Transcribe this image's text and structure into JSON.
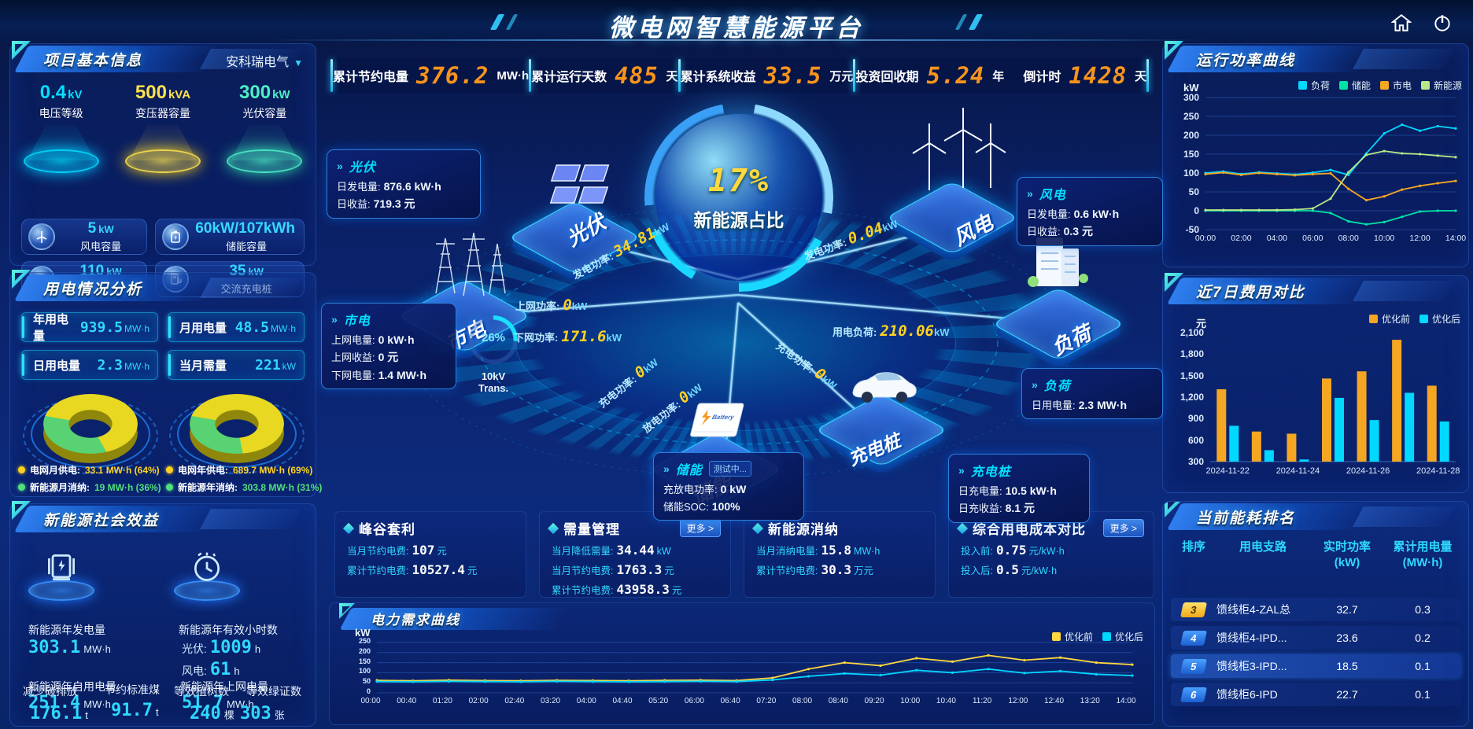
{
  "header": {
    "title": "微电网智慧能源平台",
    "stats": [
      {
        "label": "累计节约电量",
        "value": "376.2",
        "unit": "MW·h"
      },
      {
        "label": "累计运行天数",
        "value": "485",
        "unit": "天"
      },
      {
        "label": "累计系统收益",
        "value": "33.5",
        "unit": "万元"
      },
      {
        "label": "投资回收期",
        "value": "5.24",
        "unit": "年"
      },
      {
        "label": "倒计时",
        "value": "1428",
        "unit": "天"
      }
    ]
  },
  "project": {
    "title": "项目基本信息",
    "company": "安科瑞电气",
    "podiums": [
      {
        "value": "0.4",
        "unit": "kV",
        "label": "电压等级"
      },
      {
        "value": "500",
        "unit": "kVA",
        "label": "变压器容量"
      },
      {
        "value": "300",
        "unit": "kW",
        "label": "光伏容量"
      }
    ],
    "cards": [
      {
        "value": "5",
        "unit": "kW",
        "label": "风电容量"
      },
      {
        "value": "60kW/107kWh",
        "unit": "",
        "label": "储能容量"
      },
      {
        "value": "110",
        "unit": "kW",
        "label": "直流充电桩"
      },
      {
        "value": "35",
        "unit": "kW",
        "label": "交流充电桩"
      }
    ]
  },
  "usage": {
    "title": "用电情况分析",
    "stats": [
      {
        "label": "年用电量",
        "value": "939.5",
        "unit": "MW·h"
      },
      {
        "label": "月用电量",
        "value": "48.5",
        "unit": "MW·h"
      },
      {
        "label": "日用电量",
        "value": "2.3",
        "unit": "MW·h"
      },
      {
        "label": "当月需量",
        "value": "221",
        "unit": "kW"
      }
    ],
    "month_donut": {
      "grid_pct": 64,
      "renewable_pct": 36,
      "legend": [
        {
          "label": "电网月供电:",
          "value": "33.1 MW·h (64%)"
        },
        {
          "label": "新能源月消纳:",
          "value": "19 MW·h (36%)"
        }
      ]
    },
    "year_donut": {
      "grid_pct": 69,
      "renewable_pct": 31,
      "legend": [
        {
          "label": "电网年供电:",
          "value": "689.7 MW·h (69%)"
        },
        {
          "label": "新能源年消纳:",
          "value": "303.8 MW·h (31%)"
        }
      ]
    }
  },
  "social": {
    "title": "新能源社会效益",
    "gen": {
      "label": "新能源年发电量",
      "value": "303.1",
      "unit": "MW·h"
    },
    "hours": {
      "label": "新能源年有效小时数",
      "pv_label": "光伏:",
      "pv_value": "1009",
      "pv_unit": "h",
      "wind_label": "风电:",
      "wind_value": "61",
      "wind_unit": "h"
    },
    "extras": [
      {
        "label": "新能源年自用电量",
        "value": "251.4",
        "unit": "MW·h"
      },
      {
        "label": "减少碳排放",
        "value": "176.1",
        "unit": "t"
      },
      {
        "label": "节约标准煤",
        "value": "91.7",
        "unit": "t"
      },
      {
        "label": "新能源年上网电量",
        "value": "51.7",
        "unit": "MW·h"
      },
      {
        "label": "等效植树数",
        "value": "240",
        "unit": "棵"
      },
      {
        "label": "等效绿证数",
        "value": "303",
        "unit": "张"
      }
    ]
  },
  "center": {
    "ratio_value": "17%",
    "ratio_label": "新能源占比",
    "transformer_pct": "26%",
    "transformer_label": "10kV Trans.",
    "islands": {
      "pv": "光伏",
      "grid": "市电",
      "storage": "储能",
      "wind": "风电",
      "load": "负荷",
      "ev": "充电桩"
    },
    "cards": {
      "pv": {
        "title": "光伏",
        "rows": [
          {
            "label": "日发电量:",
            "value": "876.6 kW·h"
          },
          {
            "label": "日收益:",
            "value": "719.3 元"
          }
        ]
      },
      "wind": {
        "title": "风电",
        "rows": [
          {
            "label": "日发电量:",
            "value": "0.6 kW·h"
          },
          {
            "label": "日收益:",
            "value": "0.3 元"
          }
        ]
      },
      "grid": {
        "title": "市电",
        "rows": [
          {
            "label": "上网电量:",
            "value": "0 kW·h"
          },
          {
            "label": "上网收益:",
            "value": "0 元"
          },
          {
            "label": "下网电量:",
            "value": "1.4 MW·h"
          }
        ]
      },
      "load": {
        "title": "负荷",
        "rows": [
          {
            "label": "日用电量:",
            "value": "2.3 MW·h"
          }
        ]
      },
      "storage": {
        "title": "储能",
        "badge": "测试中...",
        "rows": [
          {
            "label": "充放电功率:",
            "value": "0 kW"
          },
          {
            "label": "储能SOC:",
            "value": "100%"
          }
        ]
      },
      "ev": {
        "title": "充电桩",
        "rows": [
          {
            "label": "日充电量:",
            "value": "10.5 kW·h"
          },
          {
            "label": "日充收益:",
            "value": "8.1 元"
          }
        ]
      }
    },
    "flows": {
      "pv_gen": {
        "label": "发电功率:",
        "value": "34.81",
        "unit": "kW"
      },
      "feed_in": {
        "label": "上网功率:",
        "value": "0",
        "unit": "kW"
      },
      "feed_down": {
        "label": "下网功率:",
        "value": "171.6",
        "unit": "kW"
      },
      "storage_charge": {
        "label": "充电功率:",
        "value": "0",
        "unit": "kW"
      },
      "storage_discharge": {
        "label": "放电功率:",
        "value": "0",
        "unit": "kW"
      },
      "wind_gen": {
        "label": "发电功率:",
        "value": "0.04",
        "unit": "kW"
      },
      "load_power": {
        "label": "用电负荷:",
        "value": "210.06",
        "unit": "kW"
      },
      "ev_charge": {
        "label": "充电功率:",
        "value": "0",
        "unit": "kW"
      }
    }
  },
  "bottom_panels": [
    {
      "title": "峰谷套利",
      "rows": [
        {
          "label": "当月节约电费:",
          "value": "107",
          "unit": "元"
        },
        {
          "label": "累计节约电费:",
          "value": "10527.4",
          "unit": "元"
        }
      ]
    },
    {
      "title": "需量管理",
      "more": "更多 >",
      "rows": [
        {
          "label": "当月降低需量:",
          "value": "34.44",
          "unit": "kW"
        },
        {
          "label": "当月节约电费:",
          "value": "1763.3",
          "unit": "元"
        },
        {
          "label": "累计节约电费:",
          "value": "43958.3",
          "unit": "元"
        }
      ]
    },
    {
      "title": "新能源消纳",
      "rows": [
        {
          "label": "当月消纳电量:",
          "value": "15.8",
          "unit": "MW·h"
        },
        {
          "label": "累计节约电费:",
          "value": "30.3",
          "unit": "万元"
        }
      ]
    },
    {
      "title": "综合用电成本对比",
      "more": "更多 >",
      "rows": [
        {
          "label": "投入前:",
          "value": "0.75",
          "unit": "元/kW·h"
        },
        {
          "label": "投入后:",
          "value": "0.5",
          "unit": "元/kW·h"
        }
      ]
    }
  ],
  "charts": {
    "power_curve": {
      "type": "line",
      "title": "运行功率曲线",
      "unit": "kW",
      "ylim": [
        -50,
        300
      ],
      "yticks": [
        300,
        250,
        200,
        150,
        100,
        50,
        0,
        -50
      ],
      "xticks": [
        "00:00",
        "02:00",
        "04:00",
        "06:00",
        "08:00",
        "10:00",
        "12:00",
        "14:00"
      ],
      "series": [
        {
          "name": "负荷",
          "color": "#00d8ff",
          "values": [
            100,
            104,
            97,
            102,
            99,
            96,
            101,
            108,
            95,
            152,
            205,
            228,
            212,
            224,
            218
          ]
        },
        {
          "name": "储能",
          "color": "#00e3a4",
          "values": [
            0,
            0,
            0,
            0,
            0,
            0,
            0,
            -6,
            -28,
            -36,
            -30,
            -16,
            -2,
            0,
            0
          ]
        },
        {
          "name": "市电",
          "color": "#f5a623",
          "values": [
            97,
            101,
            95,
            100,
            97,
            94,
            97,
            99,
            58,
            28,
            38,
            56,
            66,
            73,
            79
          ]
        },
        {
          "name": "新能源",
          "color": "#b8e986",
          "values": [
            2,
            2,
            2,
            2,
            2,
            3,
            6,
            32,
            102,
            148,
            158,
            152,
            150,
            146,
            142
          ]
        }
      ]
    },
    "cost7d": {
      "type": "bar",
      "title": "近7日费用对比",
      "unit": "元",
      "ylim": [
        300,
        2100
      ],
      "yticks": [
        "2,100",
        "1,800",
        "1,500",
        "1,200",
        "900",
        "600",
        "300"
      ],
      "categories": [
        "2024-11-22",
        "2024-11-23",
        "2024-11-24",
        "2024-11-25",
        "2024-11-26",
        "2024-11-27",
        "2024-11-28"
      ],
      "xticks": [
        "2024-11-22",
        "2024-11-24",
        "2024-11-26",
        "2024-11-28"
      ],
      "series": [
        {
          "name": "优化前",
          "color": "#f5a623",
          "values": [
            1310,
            720,
            690,
            1460,
            1560,
            2000,
            1360
          ]
        },
        {
          "name": "优化后",
          "color": "#00d8ff",
          "values": [
            800,
            460,
            330,
            1190,
            880,
            1260,
            860
          ]
        }
      ]
    },
    "demand_curve": {
      "type": "line",
      "title": "电力需求曲线",
      "unit": "kW",
      "ylim": [
        0,
        250
      ],
      "yticks": [
        250,
        200,
        150,
        100,
        50,
        0
      ],
      "xticks": [
        "00:00",
        "00:40",
        "01:20",
        "02:00",
        "02:40",
        "03:20",
        "04:00",
        "04:40",
        "05:20",
        "06:00",
        "06:40",
        "07:20",
        "08:00",
        "08:40",
        "09:20",
        "10:00",
        "10:40",
        "11:20",
        "12:00",
        "12:40",
        "13:20",
        "14:00"
      ],
      "series": [
        {
          "name": "优化前",
          "color": "#ffd83d",
          "values": [
            62,
            60,
            63,
            61,
            60,
            62,
            61,
            60,
            62,
            63,
            61,
            74,
            118,
            150,
            135,
            172,
            155,
            186,
            162,
            175,
            150,
            140
          ]
        },
        {
          "name": "优化后",
          "color": "#00d8ff",
          "values": [
            56,
            55,
            57,
            56,
            55,
            57,
            56,
            55,
            56,
            57,
            56,
            64,
            82,
            96,
            88,
            112,
            100,
            118,
            98,
            108,
            92,
            86
          ]
        }
      ]
    }
  },
  "ranking": {
    "title": "当前能耗排名",
    "columns": [
      {
        "line1": "排序",
        "line2": ""
      },
      {
        "line1": "用电支路",
        "line2": ""
      },
      {
        "line1": "实时功率",
        "line2": "(kW)"
      },
      {
        "line1": "累计用电量",
        "line2": "(MW·h)"
      }
    ],
    "rows": [
      {
        "rank": "3",
        "branch": "馈线柜4-ZAL总",
        "power": "32.7",
        "energy": "0.3",
        "badge": "gold",
        "highlight": false
      },
      {
        "rank": "4",
        "branch": "馈线柜4-IPD...",
        "power": "23.6",
        "energy": "0.2",
        "badge": "blue",
        "highlight": false
      },
      {
        "rank": "5",
        "branch": "馈线柜3-IPD...",
        "power": "18.5",
        "energy": "0.1",
        "badge": "blue",
        "highlight": true
      },
      {
        "rank": "6",
        "branch": "馈线柜6-IPD",
        "power": "22.7",
        "energy": "0.1",
        "badge": "blue",
        "highlight": false
      }
    ]
  }
}
